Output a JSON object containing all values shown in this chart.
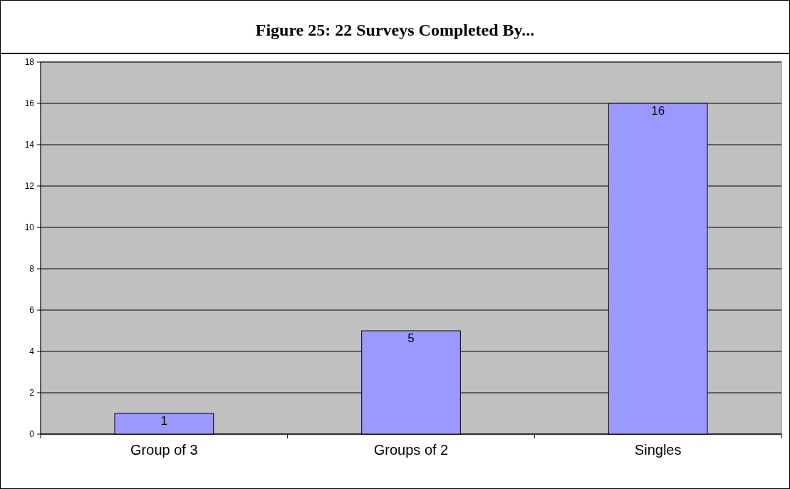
{
  "chart_data": {
    "type": "bar",
    "title": "Figure 25:  22 Surveys Completed By...",
    "categories": [
      "Group of 3",
      "Groups of 2",
      "Singles"
    ],
    "values": [
      1,
      5,
      16
    ],
    "color": "#9999ff",
    "ylim": [
      0,
      18
    ],
    "yticks": [
      0,
      2,
      4,
      6,
      8,
      10,
      12,
      14,
      16,
      18
    ],
    "grid": "y",
    "data_labels": true
  }
}
